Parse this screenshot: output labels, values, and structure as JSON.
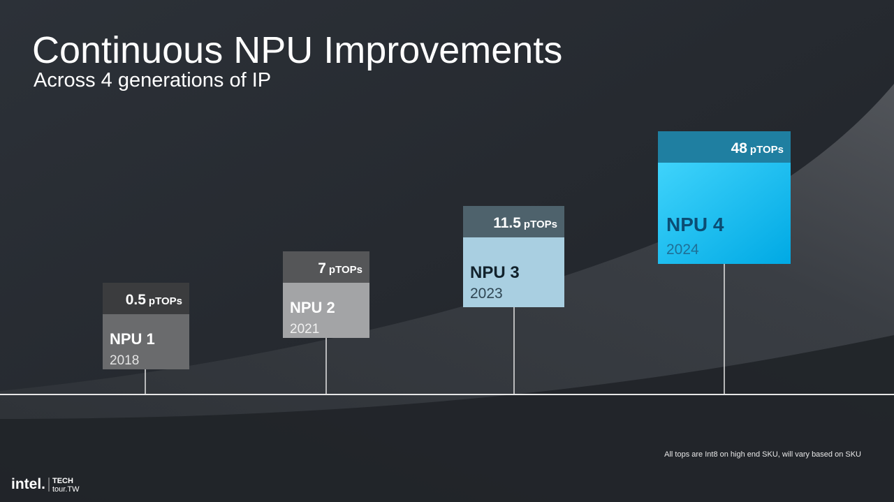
{
  "header": {
    "title": "Continuous NPU Improvements",
    "subtitle": "Across 4 generations of IP"
  },
  "nodes": [
    {
      "label": "NPU 1",
      "year": "2018",
      "value": 0.5,
      "unit": "pTOPs"
    },
    {
      "label": "NPU 2",
      "year": "2021",
      "value": 7,
      "unit": "pTOPs"
    },
    {
      "label": "NPU 3",
      "year": "2023",
      "value": 11.5,
      "unit": "pTOPs"
    },
    {
      "label": "NPU 4",
      "year": "2024",
      "value": 48,
      "unit": "pTOPs"
    }
  ],
  "footnote": "All tops are Int8 on high end SKU, will vary based on SKU",
  "footer": {
    "brand": "intel.",
    "event_line1": "TECH",
    "event_line2": "tour.TW"
  }
}
